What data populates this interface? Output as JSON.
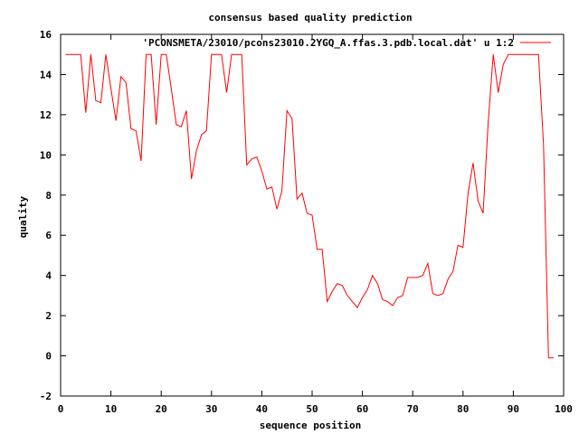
{
  "chart_data": {
    "type": "line",
    "title": "consensus based quality prediction",
    "xlabel": "sequence position",
    "ylabel": "quality",
    "xlim": [
      0,
      100
    ],
    "ylim": [
      -2,
      16
    ],
    "xticks": [
      0,
      10,
      20,
      30,
      40,
      50,
      60,
      70,
      80,
      90,
      100
    ],
    "yticks": [
      -2,
      0,
      2,
      4,
      6,
      8,
      10,
      12,
      14,
      16
    ],
    "grid": false,
    "legend_position": "top-right",
    "series": [
      {
        "name": "'PCONSMETA/23010/pcons23010.2YGQ_A.ffas.3.pdb.local.dat' u 1:2",
        "color": "#ff0000",
        "x": [
          1,
          2,
          3,
          4,
          5,
          6,
          7,
          8,
          9,
          10,
          11,
          12,
          13,
          14,
          15,
          16,
          17,
          18,
          19,
          20,
          21,
          22,
          23,
          24,
          25,
          26,
          27,
          28,
          29,
          30,
          31,
          32,
          33,
          34,
          35,
          36,
          37,
          38,
          39,
          40,
          41,
          42,
          43,
          44,
          45,
          46,
          47,
          48,
          49,
          50,
          51,
          52,
          53,
          54,
          55,
          56,
          57,
          58,
          59,
          60,
          61,
          62,
          63,
          64,
          65,
          66,
          67,
          68,
          69,
          70,
          71,
          72,
          73,
          74,
          75,
          76,
          77,
          78,
          79,
          80,
          81,
          82,
          83,
          84,
          85,
          86,
          87,
          88,
          89,
          90,
          91,
          92,
          93,
          94,
          95,
          96,
          97,
          98
        ],
        "y": [
          15,
          15,
          15,
          15,
          12.1,
          15,
          12.7,
          12.6,
          15,
          13.3,
          11.7,
          13.9,
          13.6,
          11.3,
          11.2,
          9.7,
          15,
          15,
          11.5,
          15,
          15,
          13.3,
          11.5,
          11.4,
          12.2,
          8.8,
          10.2,
          11,
          11.2,
          15,
          15,
          15,
          13.1,
          15,
          15,
          15,
          9.5,
          9.8,
          9.9,
          9.2,
          8.3,
          8.4,
          7.3,
          8.2,
          12.2,
          11.8,
          7.8,
          8.1,
          7.1,
          7,
          5.3,
          5.3,
          2.7,
          3.2,
          3.6,
          3.5,
          3,
          2.7,
          2.4,
          2.9,
          3.3,
          4,
          3.6,
          2.8,
          2.7,
          2.5,
          2.9,
          3,
          3.9,
          3.9,
          3.9,
          4,
          4.6,
          3.1,
          3,
          3.1,
          3.8,
          4.2,
          5.5,
          5.4,
          8.1,
          9.6,
          7.7,
          7.1,
          11.6,
          15,
          13.1,
          14.5,
          15,
          15,
          15,
          15,
          15,
          15,
          15,
          10.5,
          -0.1,
          -0.1
        ]
      }
    ]
  }
}
